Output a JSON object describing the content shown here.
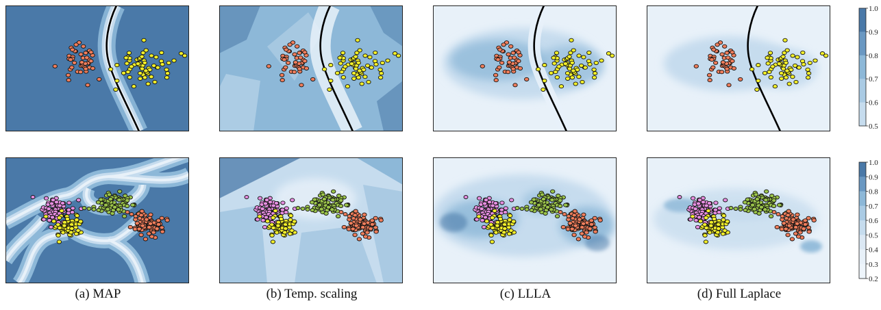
{
  "captions": [
    "(a) MAP",
    "(b) Temp. scaling",
    "(c) LLLA",
    "(d) Full Laplace"
  ],
  "colorbars": [
    {
      "ticks": [
        "1.0",
        "0.9",
        "0.8",
        "0.7",
        "0.6",
        "0.5"
      ]
    },
    {
      "ticks": [
        "1.0",
        "0.9",
        "0.8",
        "0.7",
        "0.6",
        "0.5",
        "0.4",
        "0.3",
        "0.2"
      ]
    }
  ],
  "colors": {
    "blue_dark": "#4a79a8",
    "blue_mid": "#8db8d8",
    "blue_light": "#c6dcee",
    "blue_pale": "#e8f1f9",
    "orange": "#f07e5c",
    "yellow": "#f2ef2a",
    "pink": "#e68ee0",
    "green": "#9bc44a",
    "boundary": "#000000"
  },
  "chart_data": [
    {
      "type": "heatmap",
      "description_row": "binary classification",
      "panels": [
        "(a) MAP",
        "(b) Temp. scaling",
        "(c) LLLA",
        "(d) Full Laplace"
      ],
      "colorbar_range": [
        0.5,
        1.0
      ],
      "clusters": [
        {
          "color": "orange"
        },
        {
          "color": "yellow"
        }
      ],
      "decision_boundary": true
    },
    {
      "type": "heatmap",
      "description_row": "four-class classification",
      "panels": [
        "(a) MAP",
        "(b) Temp. scaling",
        "(c) LLLA",
        "(d) Full Laplace"
      ],
      "colorbar_range": [
        0.2,
        1.0
      ],
      "clusters": [
        {
          "color": "pink"
        },
        {
          "color": "yellow"
        },
        {
          "color": "green"
        },
        {
          "color": "orange"
        }
      ],
      "decision_boundary": false
    }
  ]
}
